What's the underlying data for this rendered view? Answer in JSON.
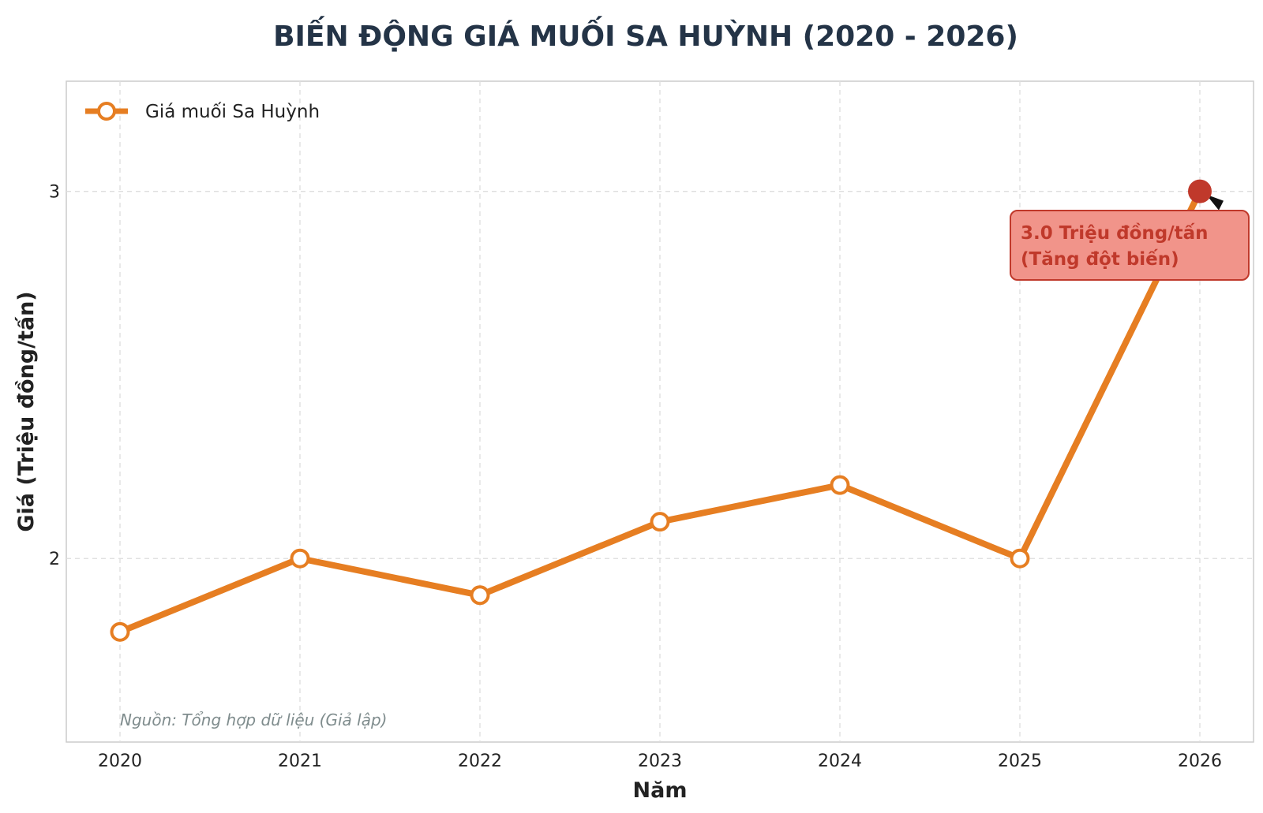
{
  "chart_data": {
    "type": "line",
    "title": "BIẾN ĐỘNG GIÁ MUỐI SA HUỲNH (2020 - 2026)",
    "xlabel": "Năm",
    "ylabel": "Giá (Triệu đồng/tấn)",
    "x": [
      "2020",
      "2021",
      "2022",
      "2023",
      "2024",
      "2025",
      "2026"
    ],
    "series": [
      {
        "name": "Giá muối Sa Huỳnh",
        "values": [
          1.8,
          2.0,
          1.9,
          2.1,
          2.2,
          2.0,
          3.0
        ],
        "color": "#e67e22"
      }
    ],
    "ylim": [
      1.5,
      3.3
    ],
    "yticks": [
      "2",
      "3"
    ],
    "grid": true,
    "legend_position": "top-left",
    "highlight": {
      "index": 6,
      "color": "#c0392b"
    },
    "annotation": {
      "line1": "3.0 Triệu đồng/tấn",
      "line2": "(Tăng đột biến)",
      "box_fill": "#f1948a",
      "box_stroke": "#c0392b"
    },
    "source_note": "Nguồn: Tổng hợp dữ liệu (Giả lập)"
  }
}
